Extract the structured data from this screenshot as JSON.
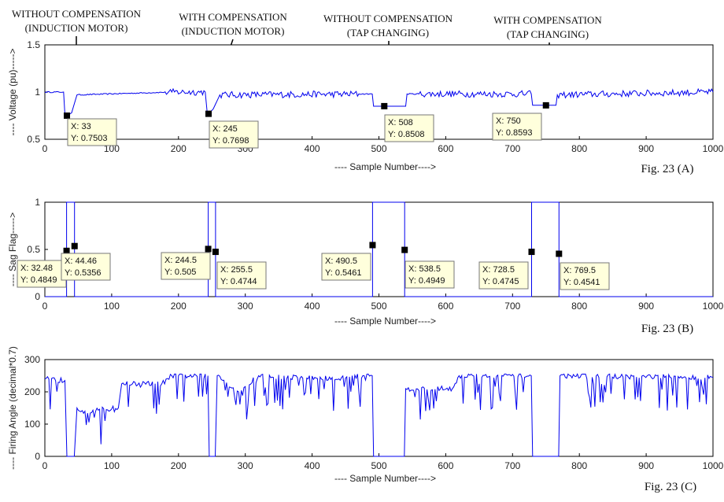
{
  "figure": {
    "annotations": [
      {
        "line1": "WITHOUT COMPENSATION",
        "line2": "(INDUCTION MOTOR)"
      },
      {
        "line1": "WITH COMPENSATION",
        "line2": "(INDUCTION MOTOR)"
      },
      {
        "line1": "WITHOUT COMPENSATION",
        "line2": "(TAP CHANGING)"
      },
      {
        "line1": "WITH COMPENSATION",
        "line2": "(TAP CHANGING)"
      }
    ]
  },
  "chart_data": [
    {
      "type": "line",
      "caption": "Fig. 23 (A)",
      "xlabel": "---- Sample Number---->",
      "ylabel": "---- Voltage (pu)----->",
      "xlim": [
        0,
        1000
      ],
      "ylim": [
        0.5,
        1.5
      ],
      "xticks": [
        0,
        100,
        200,
        300,
        400,
        500,
        600,
        700,
        800,
        900,
        1000
      ],
      "yticks": [
        0.5,
        1,
        1.5
      ],
      "color": "#0000ee",
      "series": [
        {
          "x": [
            0,
            28,
            30,
            33,
            40,
            48,
            190,
            240,
            243,
            245,
            252,
            262,
            490,
            492,
            508,
            540,
            542,
            728,
            730,
            750,
            765,
            767,
            1000
          ],
          "values": [
            1.0,
            1.0,
            0.76,
            0.75,
            0.78,
            0.97,
            1.0,
            1.0,
            0.78,
            0.77,
            0.82,
            0.97,
            0.98,
            0.85,
            0.85,
            0.85,
            0.98,
            0.98,
            0.86,
            0.86,
            0.86,
            0.97,
            1.0
          ]
        }
      ],
      "datatips": [
        {
          "x": 33,
          "y": 0.7503,
          "xtext": "X: 33",
          "ytext": "Y: 0.7503"
        },
        {
          "x": 245,
          "y": 0.7698,
          "xtext": "X: 245",
          "ytext": "Y: 0.7698"
        },
        {
          "x": 508,
          "y": 0.8508,
          "xtext": "X: 508",
          "ytext": "Y: 0.8508"
        },
        {
          "x": 750,
          "y": 0.8593,
          "xtext": "X: 750",
          "ytext": "Y: 0.8593"
        }
      ]
    },
    {
      "type": "line",
      "caption": "Fig. 23 (B)",
      "xlabel": "---- Sample Number---->",
      "ylabel": "---- Sag Flag----->",
      "xlim": [
        0,
        1000
      ],
      "ylim": [
        0,
        1
      ],
      "xticks": [
        0,
        100,
        200,
        300,
        400,
        500,
        600,
        700,
        800,
        900,
        1000
      ],
      "yticks": [
        0,
        0.5,
        1
      ],
      "color": "#0000ee",
      "series": [
        {
          "x": [
            0,
            32.48,
            32.48,
            44.46,
            44.46,
            244.5,
            244.5,
            255.5,
            255.5,
            490.5,
            490.5,
            538.5,
            538.5,
            728.5,
            728.5,
            769.5,
            769.5,
            1000
          ],
          "values": [
            0,
            0,
            1,
            1,
            0,
            0,
            1,
            1,
            0,
            0,
            1,
            1,
            0,
            0,
            1,
            1,
            0,
            0
          ]
        }
      ],
      "datatips": [
        {
          "x": 32.48,
          "y": 0.4849,
          "xtext": "X: 32.48",
          "ytext": "Y: 0.4849"
        },
        {
          "x": 44.46,
          "y": 0.5356,
          "xtext": "X: 44.46",
          "ytext": "Y: 0.5356"
        },
        {
          "x": 244.5,
          "y": 0.505,
          "xtext": "X: 244.5",
          "ytext": "Y: 0.505"
        },
        {
          "x": 255.5,
          "y": 0.4744,
          "xtext": "X: 255.5",
          "ytext": "Y: 0.4744"
        },
        {
          "x": 490.5,
          "y": 0.5461,
          "xtext": "X: 490.5",
          "ytext": "Y: 0.5461"
        },
        {
          "x": 538.5,
          "y": 0.4949,
          "xtext": "X: 538.5",
          "ytext": "Y: 0.4949"
        },
        {
          "x": 728.5,
          "y": 0.4745,
          "xtext": "X: 728.5",
          "ytext": "Y: 0.4745"
        },
        {
          "x": 769.5,
          "y": 0.4541,
          "xtext": "X: 769.5",
          "ytext": "Y: 0.4541"
        }
      ]
    },
    {
      "type": "line",
      "caption": "Fig. 23 (C)",
      "xlabel": "---- Sample Number---->",
      "ylabel": "---- Firing Angle (decimal*0.7)",
      "xlim": [
        0,
        1000
      ],
      "ylim": [
        0,
        300
      ],
      "xticks": [
        0,
        100,
        200,
        300,
        400,
        500,
        600,
        700,
        800,
        900,
        1000
      ],
      "yticks": [
        0,
        100,
        200,
        300
      ],
      "color": "#0000ee",
      "series": [
        {
          "x": [
            0,
            30,
            33,
            44,
            48,
            60,
            110,
            115,
            175,
            190,
            244,
            246,
            255,
            258,
            290,
            320,
            440,
            460,
            490,
            492,
            538,
            540,
            610,
            620,
            728,
            730,
            769,
            771,
            1000
          ],
          "values": [
            240,
            235,
            0,
            0,
            150,
            140,
            150,
            225,
            225,
            250,
            250,
            0,
            0,
            250,
            200,
            250,
            240,
            250,
            250,
            0,
            0,
            210,
            210,
            250,
            250,
            0,
            0,
            250,
            245
          ]
        }
      ]
    }
  ]
}
